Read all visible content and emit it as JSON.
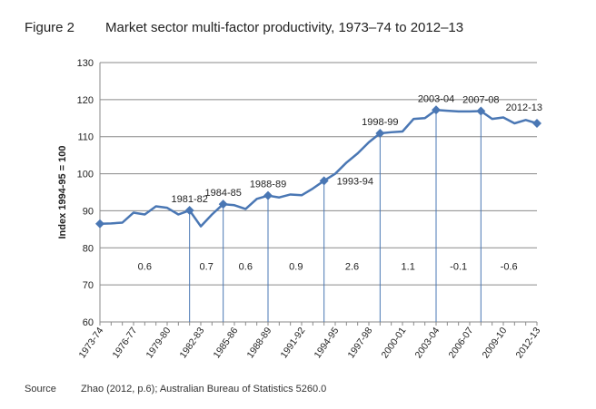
{
  "figure": {
    "label": "Figure 2",
    "title": "Market sector multi-factor productivity, 1973–74 to 2012–13"
  },
  "source": {
    "label": "Source",
    "text": "Zhao (2012, p.6); Australian Bureau of Statistics 5260.0"
  },
  "chart_data": {
    "type": "line",
    "ylabel": "Index 1994-95 = 100",
    "ylim": [
      60,
      130
    ],
    "yticks": [
      60,
      70,
      80,
      90,
      100,
      110,
      120,
      130
    ],
    "grid": "horizontal",
    "line_color": "#4a77b4",
    "categories": [
      "1973-74",
      "1974-75",
      "1975-76",
      "1976-77",
      "1977-78",
      "1978-79",
      "1979-80",
      "1980-81",
      "1981-82",
      "1982-83",
      "1983-84",
      "1984-85",
      "1985-86",
      "1986-87",
      "1987-88",
      "1988-89",
      "1989-90",
      "1990-91",
      "1991-92",
      "1992-93",
      "1993-94",
      "1994-95",
      "1995-96",
      "1996-97",
      "1997-98",
      "1998-99",
      "1999-00",
      "2000-01",
      "2001-02",
      "2002-03",
      "2003-04",
      "2004-05",
      "2005-06",
      "2006-07",
      "2007-08",
      "2008-09",
      "2009-10",
      "2010-11",
      "2011-12",
      "2012-13"
    ],
    "x_tick_labels": [
      "1973-74",
      "1976-77",
      "1979-80",
      "1982-83",
      "1985-86",
      "1988-89",
      "1991-92",
      "1994-95",
      "1997-98",
      "2000-01",
      "2003-04",
      "2006-07",
      "2009-10",
      "2012-13"
    ],
    "series": [
      {
        "values": [
          86.5,
          86.6,
          86.8,
          89.5,
          89.0,
          91.2,
          90.8,
          89.0,
          90.1,
          85.8,
          89.0,
          91.8,
          91.5,
          90.5,
          93.2,
          94.1,
          93.6,
          94.4,
          94.2,
          96.0,
          98.1,
          100.0,
          103.0,
          105.5,
          108.5,
          110.9,
          111.2,
          111.4,
          114.8,
          115.0,
          117.2,
          117.0,
          116.8,
          116.8,
          116.9,
          114.8,
          115.2,
          113.6,
          114.5,
          113.6
        ]
      }
    ],
    "markers": [
      {
        "category": "1973-74",
        "label": ""
      },
      {
        "category": "1981-82",
        "label": "1981-82"
      },
      {
        "category": "1984-85",
        "label": "1984-85"
      },
      {
        "category": "1988-89",
        "label": "1988-89"
      },
      {
        "category": "1993-94",
        "label": "1993-94"
      },
      {
        "category": "1998-99",
        "label": "1998-99"
      },
      {
        "category": "2003-04",
        "label": "2003-04"
      },
      {
        "category": "2007-08",
        "label": "2007-08"
      },
      {
        "category": "2012-13",
        "label": "2012-13"
      }
    ],
    "cycle_dividers": [
      "1981-82",
      "1984-85",
      "1988-89",
      "1993-94",
      "1998-99",
      "2003-04",
      "2007-08"
    ],
    "cycle_growth": [
      {
        "from": "1973-74",
        "to": "1981-82",
        "value": "0.6"
      },
      {
        "from": "1981-82",
        "to": "1984-85",
        "value": "0.7"
      },
      {
        "from": "1984-85",
        "to": "1988-89",
        "value": "0.6"
      },
      {
        "from": "1988-89",
        "to": "1993-94",
        "value": "0.9"
      },
      {
        "from": "1993-94",
        "to": "1998-99",
        "value": "2.6"
      },
      {
        "from": "1998-99",
        "to": "2003-04",
        "value": "1.1"
      },
      {
        "from": "2003-04",
        "to": "2007-08",
        "value": "-0.1"
      },
      {
        "from": "2007-08",
        "to": "2012-13",
        "value": "-0.6"
      }
    ],
    "growth_label_y": 75
  }
}
